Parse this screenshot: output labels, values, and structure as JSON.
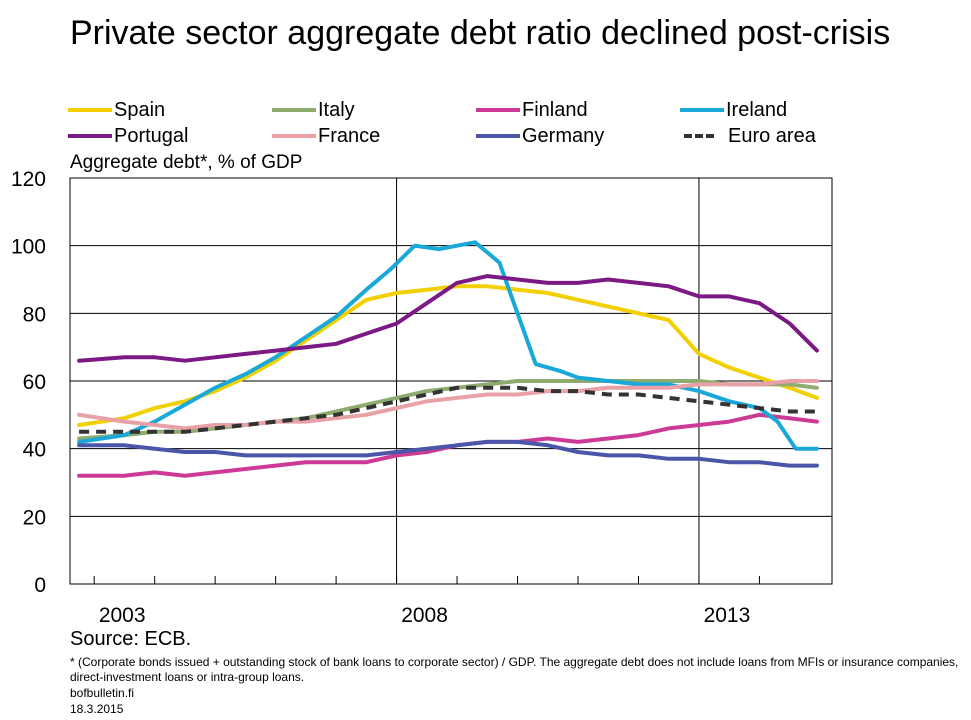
{
  "title": "Private sector aggregate debt ratio declined post-crisis",
  "subtitle": "Aggregate debt*, % of GDP",
  "source": "Source: ECB.",
  "footnote": "* (Corporate bonds issued + outstanding stock of bank loans to corporate sector) / GDP. The aggregate debt does not include loans from MFIs or insurance companies, direct-investment loans or intra-group loans.",
  "site": "bofbulletin.fi",
  "date": "18.3.2015",
  "chart_data": {
    "type": "line",
    "xlim": [
      2002.6,
      2015.2
    ],
    "ylim": [
      0,
      120
    ],
    "y_ticks": [
      0,
      20,
      40,
      60,
      80,
      100,
      120
    ],
    "x_ticks": [
      2003,
      2008,
      2013
    ],
    "x_minor_ticks": [
      2004,
      2005,
      2006,
      2007,
      2009,
      2010,
      2011,
      2012,
      2014
    ],
    "vertical_gridlines": [
      2008,
      2013
    ],
    "legend_placement": "top",
    "series": [
      {
        "name": "Spain",
        "color": "#f2d000",
        "dashed": false,
        "x": [
          2002.75,
          2003.5,
          2004,
          2004.5,
          2005,
          2005.5,
          2006,
          2006.5,
          2007,
          2007.5,
          2008,
          2008.5,
          2009,
          2009.5,
          2010,
          2010.5,
          2011,
          2011.5,
          2012,
          2012.5,
          2013,
          2013.5,
          2014,
          2014.5,
          2014.95
        ],
        "y": [
          47,
          49,
          52,
          54,
          57,
          61,
          66,
          72,
          78,
          84,
          86,
          87,
          88,
          88,
          87,
          86,
          84,
          82,
          80,
          78,
          68,
          64,
          61,
          58,
          55
        ]
      },
      {
        "name": "Italy",
        "color": "#8fac70",
        "dashed": false,
        "x": [
          2002.75,
          2003.5,
          2004,
          2004.5,
          2005,
          2005.5,
          2006,
          2006.5,
          2007,
          2007.5,
          2008,
          2008.5,
          2009,
          2009.5,
          2010,
          2010.5,
          2011,
          2011.5,
          2012,
          2012.5,
          2013,
          2013.5,
          2014,
          2014.5,
          2014.95
        ],
        "y": [
          43,
          44,
          45,
          45,
          46,
          47,
          48,
          49,
          51,
          53,
          55,
          57,
          58,
          59,
          60,
          60,
          60,
          60,
          60,
          60,
          60,
          59,
          59,
          59,
          58
        ]
      },
      {
        "name": "Finland",
        "color": "#cc3a95",
        "dashed": false,
        "x": [
          2002.75,
          2003.5,
          2004,
          2004.5,
          2005,
          2005.5,
          2006,
          2006.5,
          2007,
          2007.5,
          2008,
          2008.5,
          2009,
          2009.5,
          2010,
          2010.5,
          2011,
          2011.5,
          2012,
          2012.5,
          2013,
          2013.5,
          2014,
          2014.5,
          2014.95
        ],
        "y": [
          32,
          32,
          33,
          32,
          33,
          34,
          35,
          36,
          36,
          36,
          38,
          39,
          41,
          42,
          42,
          43,
          42,
          43,
          44,
          46,
          47,
          48,
          50,
          49,
          48
        ]
      },
      {
        "name": "Ireland",
        "color": "#1aa8d9",
        "dashed": false,
        "x": [
          2002.75,
          2003.5,
          2004,
          2004.5,
          2005,
          2005.5,
          2006,
          2006.5,
          2007,
          2007.5,
          2007.9,
          2008.3,
          2008.7,
          2009,
          2009.3,
          2009.7,
          2010,
          2010.3,
          2010.7,
          2011,
          2011.5,
          2012,
          2012.5,
          2013,
          2013.5,
          2014,
          2014.3,
          2014.6,
          2014.95
        ],
        "y": [
          42,
          44,
          48,
          53,
          58,
          62,
          67,
          73,
          79,
          87,
          93,
          100,
          99,
          100,
          101,
          95,
          80,
          65,
          63,
          61,
          60,
          59,
          59,
          57,
          54,
          52,
          48,
          40,
          40
        ]
      },
      {
        "name": "Portugal",
        "color": "#7b1a85",
        "dashed": false,
        "x": [
          2002.75,
          2003.5,
          2004,
          2004.5,
          2005,
          2005.5,
          2006,
          2006.5,
          2007,
          2007.5,
          2008,
          2008.5,
          2009,
          2009.5,
          2010,
          2010.5,
          2011,
          2011.5,
          2012,
          2012.5,
          2013,
          2013.5,
          2014,
          2014.5,
          2014.95
        ],
        "y": [
          66,
          67,
          67,
          66,
          67,
          68,
          69,
          70,
          71,
          74,
          77,
          83,
          89,
          91,
          90,
          89,
          89,
          90,
          89,
          88,
          85,
          85,
          83,
          77,
          69
        ]
      },
      {
        "name": "France",
        "color": "#e8a1a6",
        "dashed": false,
        "x": [
          2002.75,
          2003.5,
          2004,
          2004.5,
          2005,
          2005.5,
          2006,
          2006.5,
          2007,
          2007.5,
          2008,
          2008.5,
          2009,
          2009.5,
          2010,
          2010.5,
          2011,
          2011.5,
          2012,
          2012.5,
          2013,
          2013.5,
          2014,
          2014.5,
          2014.95
        ],
        "y": [
          50,
          48,
          47,
          46,
          47,
          47,
          48,
          48,
          49,
          50,
          52,
          54,
          55,
          56,
          56,
          57,
          57,
          58,
          58,
          58,
          59,
          59,
          59,
          60,
          60
        ]
      },
      {
        "name": "Germany",
        "color": "#4a57a8",
        "dashed": false,
        "x": [
          2002.75,
          2003.5,
          2004,
          2004.5,
          2005,
          2005.5,
          2006,
          2006.5,
          2007,
          2007.5,
          2008,
          2008.5,
          2009,
          2009.5,
          2010,
          2010.5,
          2011,
          2011.5,
          2012,
          2012.5,
          2013,
          2013.5,
          2014,
          2014.5,
          2014.95
        ],
        "y": [
          41,
          41,
          40,
          39,
          39,
          38,
          38,
          38,
          38,
          38,
          39,
          40,
          41,
          42,
          42,
          41,
          39,
          38,
          38,
          37,
          37,
          36,
          36,
          35,
          35
        ]
      },
      {
        "name": "Euro area",
        "color": "#333333",
        "dashed": true,
        "x": [
          2002.75,
          2003.5,
          2004,
          2004.5,
          2005,
          2005.5,
          2006,
          2006.5,
          2007,
          2007.5,
          2008,
          2008.5,
          2009,
          2009.5,
          2010,
          2010.5,
          2011,
          2011.5,
          2012,
          2012.5,
          2013,
          2013.5,
          2014,
          2014.5,
          2014.95
        ],
        "y": [
          45,
          45,
          45,
          45,
          46,
          47,
          48,
          49,
          50,
          52,
          54,
          56,
          58,
          58,
          58,
          57,
          57,
          56,
          56,
          55,
          54,
          53,
          52,
          51,
          51
        ]
      }
    ]
  }
}
